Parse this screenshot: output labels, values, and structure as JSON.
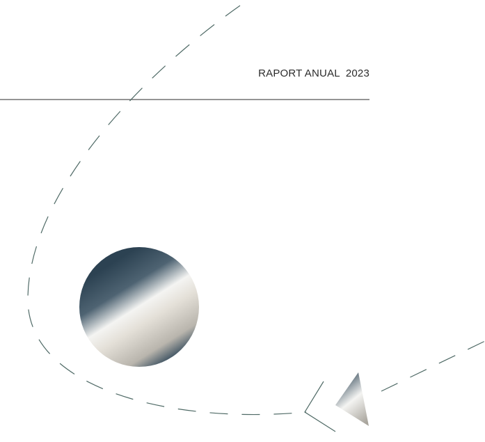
{
  "header": {
    "title": "RAPORT ANUAL",
    "year": "2023"
  }
}
